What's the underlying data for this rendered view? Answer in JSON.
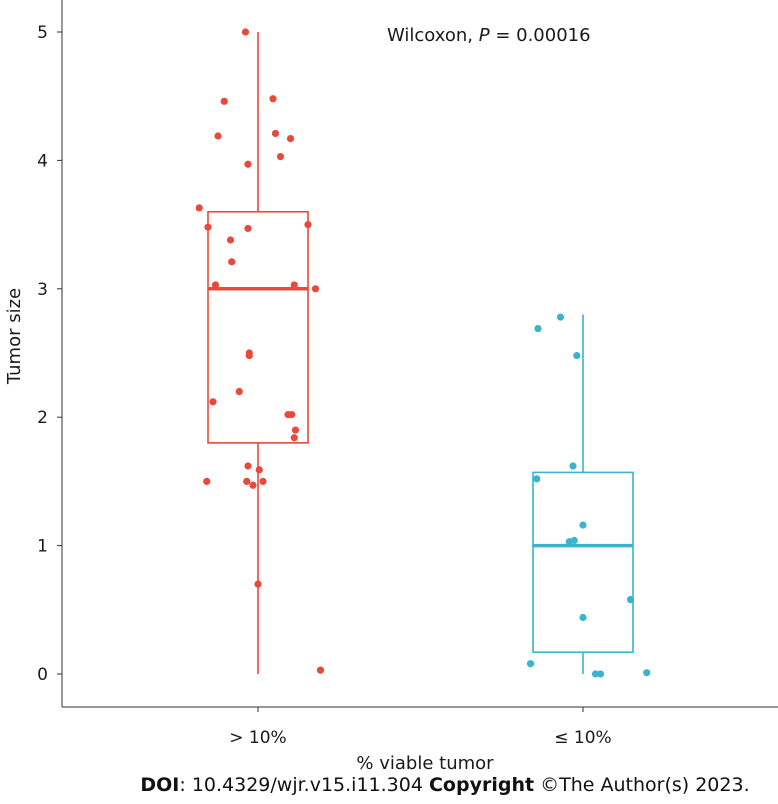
{
  "chart_data": {
    "type": "box",
    "title": "",
    "xlabel": "% viable tumor",
    "ylabel": "Tumor size",
    "ylim": [
      -0.25,
      5.25
    ],
    "yticks": [
      0,
      1,
      2,
      3,
      4,
      5
    ],
    "ytick_labels": [
      "0",
      "1",
      "2",
      "3",
      "4",
      "5"
    ],
    "annotation": {
      "prefix": "Wilcoxon, ",
      "p_symbol": "P",
      "value": " = 0.00016"
    },
    "groups": [
      {
        "name": "> 10%",
        "color": "#e8493a",
        "box": {
          "whisker_low": 0.0,
          "q1": 1.8,
          "median": 3.0,
          "q3": 3.6,
          "whisker_high": 5.0
        },
        "points": [
          {
            "j": -0.1,
            "y": 5.0
          },
          {
            "j": 0.12,
            "y": 4.48
          },
          {
            "j": -0.27,
            "y": 4.46
          },
          {
            "j": 0.14,
            "y": 4.21
          },
          {
            "j": -0.32,
            "y": 4.19
          },
          {
            "j": 0.26,
            "y": 4.17
          },
          {
            "j": 0.18,
            "y": 4.03
          },
          {
            "j": -0.08,
            "y": 3.97
          },
          {
            "j": -0.47,
            "y": 3.63
          },
          {
            "j": -0.4,
            "y": 3.48
          },
          {
            "j": -0.08,
            "y": 3.47
          },
          {
            "j": 0.4,
            "y": 3.5
          },
          {
            "j": -0.22,
            "y": 3.38
          },
          {
            "j": -0.21,
            "y": 3.21
          },
          {
            "j": -0.34,
            "y": 3.03
          },
          {
            "j": 0.29,
            "y": 3.03
          },
          {
            "j": 0.46,
            "y": 3.0
          },
          {
            "j": -0.07,
            "y": 2.5
          },
          {
            "j": -0.07,
            "y": 2.48
          },
          {
            "j": -0.15,
            "y": 2.2
          },
          {
            "j": -0.36,
            "y": 2.12
          },
          {
            "j": 0.24,
            "y": 2.02
          },
          {
            "j": 0.27,
            "y": 2.02
          },
          {
            "j": 0.3,
            "y": 1.9
          },
          {
            "j": 0.29,
            "y": 1.84
          },
          {
            "j": -0.08,
            "y": 1.62
          },
          {
            "j": 0.01,
            "y": 1.59
          },
          {
            "j": -0.09,
            "y": 1.5
          },
          {
            "j": -0.41,
            "y": 1.5
          },
          {
            "j": 0.04,
            "y": 1.5
          },
          {
            "j": -0.04,
            "y": 1.47
          },
          {
            "j": 0.0,
            "y": 0.7
          },
          {
            "j": 0.5,
            "y": 0.03
          }
        ]
      },
      {
        "name": "≤ 10%",
        "color": "#39b3d0",
        "box": {
          "whisker_low": 0.0,
          "q1": 0.17,
          "median": 1.0,
          "q3": 1.57,
          "whisker_high": 2.8
        },
        "points": [
          {
            "j": -0.36,
            "y": 2.69
          },
          {
            "j": -0.18,
            "y": 2.78
          },
          {
            "j": -0.05,
            "y": 2.48
          },
          {
            "j": -0.37,
            "y": 1.52
          },
          {
            "j": -0.08,
            "y": 1.62
          },
          {
            "j": 0.0,
            "y": 1.16
          },
          {
            "j": -0.11,
            "y": 1.03
          },
          {
            "j": -0.07,
            "y": 1.04
          },
          {
            "j": 0.38,
            "y": 0.58
          },
          {
            "j": 0.0,
            "y": 0.44
          },
          {
            "j": -0.42,
            "y": 0.08
          },
          {
            "j": 0.14,
            "y": 0.0
          },
          {
            "j": 0.1,
            "y": 0.0
          },
          {
            "j": 0.51,
            "y": 0.01
          }
        ]
      }
    ]
  },
  "footer": {
    "doi_label": "DOI",
    "doi_value": ": 10.4329/wjr.v15.i11.304 ",
    "copyright_label": "Copyright",
    "copyright_value": " ©The Author(s) 2023."
  }
}
